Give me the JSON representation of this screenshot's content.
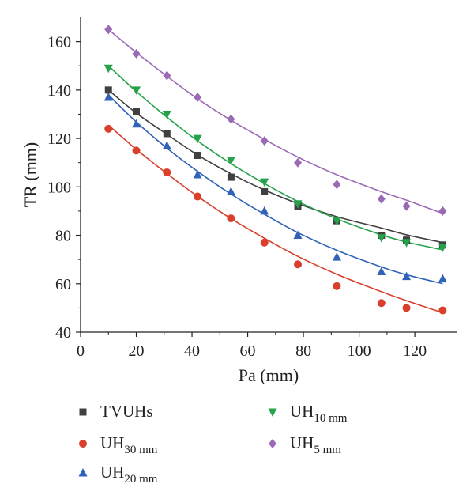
{
  "chart_data": {
    "type": "scatter",
    "xlabel": "Pa (mm)",
    "ylabel": "TR (mm)",
    "xlim": [
      0,
      135
    ],
    "ylim": [
      40,
      170
    ],
    "x_ticks": [
      0,
      20,
      40,
      60,
      80,
      100,
      120
    ],
    "y_ticks": [
      40,
      60,
      80,
      100,
      120,
      140,
      160
    ],
    "x": [
      10,
      20,
      31,
      42,
      54,
      66,
      78,
      92,
      108,
      117,
      130
    ],
    "series": [
      {
        "name": "TVUHs",
        "label_main": "TVUHs",
        "label_sub": "",
        "color": "#404040",
        "marker": "square",
        "values": [
          140,
          131,
          122,
          113,
          104,
          98,
          92,
          86,
          80,
          78,
          76
        ],
        "fit": [
          140,
          130.5,
          121.7,
          113.2,
          105.4,
          98.7,
          93.1,
          87.7,
          83,
          80.2,
          77
        ]
      },
      {
        "name": "UH30mm",
        "label_main": "UH",
        "label_sub": "30 mm",
        "color": "#d93f2b",
        "marker": "circle",
        "values": [
          124,
          115,
          106,
          96,
          87,
          77,
          68,
          59,
          52,
          50,
          49
        ],
        "fit": [
          125.5,
          115.5,
          105.5,
          96.1,
          86.9,
          78.8,
          71.3,
          63.9,
          56.7,
          53,
          48
        ]
      },
      {
        "name": "UH20mm",
        "label_main": "UH",
        "label_sub": "20 mm",
        "color": "#2f62b8",
        "marker": "triangle",
        "values": [
          137,
          126,
          117,
          105,
          98,
          90,
          80,
          71,
          65,
          63,
          62
        ],
        "fit": [
          138,
          126.8,
          116,
          106.4,
          97,
          88.7,
          81.1,
          73.8,
          66.9,
          63.7,
          60
        ]
      },
      {
        "name": "UH10mm",
        "label_main": "UH",
        "label_sub": "10 mm",
        "color": "#27a24c",
        "marker": "triangle-down",
        "values": [
          149,
          140,
          130,
          120,
          111,
          102,
          93,
          86,
          79,
          77,
          75
        ],
        "fit": [
          150,
          139.4,
          128.8,
          119,
          109.6,
          101.4,
          94,
          86.8,
          80.2,
          77.2,
          74
        ]
      },
      {
        "name": "UH5mm",
        "label_main": "UH",
        "label_sub": "5 mm",
        "color": "#9a6ab5",
        "marker": "diamond",
        "values": [
          165,
          155,
          146,
          137,
          128,
          119,
          110,
          101,
          95,
          92,
          90
        ],
        "fit": [
          165,
          155.5,
          145.7,
          136.4,
          127.5,
          119.6,
          112.3,
          105,
          98,
          94.5,
          89
        ]
      }
    ],
    "legend_placement": "bottom",
    "grid": false
  }
}
